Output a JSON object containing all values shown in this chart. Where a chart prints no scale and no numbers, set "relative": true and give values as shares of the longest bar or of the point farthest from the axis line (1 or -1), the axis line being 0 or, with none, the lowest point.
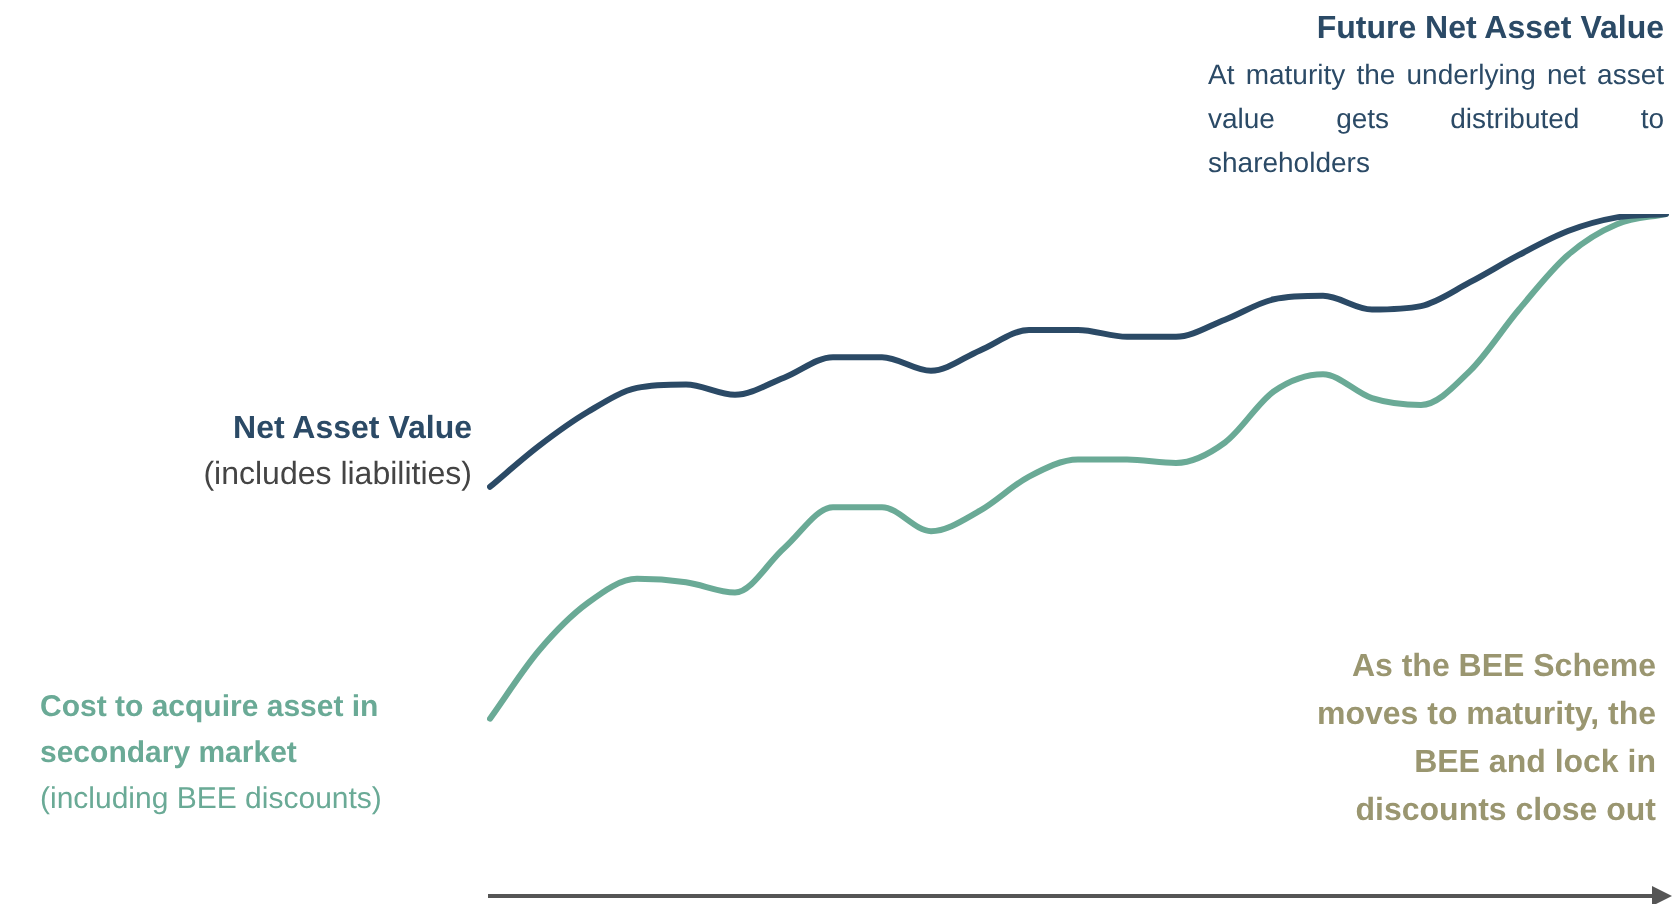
{
  "chart_data": {
    "type": "line",
    "relative": true,
    "legend": false,
    "grid": false,
    "marker": "none",
    "line_style": "solid",
    "categories": [
      null,
      null,
      null,
      null,
      null,
      null,
      null,
      null,
      null,
      null,
      null,
      null,
      null,
      null,
      null,
      null,
      null,
      null,
      null,
      null,
      null,
      null,
      null,
      null,
      null
    ],
    "series": [
      {
        "name": "Net Asset Value",
        "color": "#2b4a66",
        "values": [
          0.6,
          0.66,
          0.71,
          0.745,
          0.75,
          0.735,
          0.76,
          0.79,
          0.79,
          0.77,
          0.8,
          0.83,
          0.83,
          0.82,
          0.82,
          0.845,
          0.875,
          0.88,
          0.86,
          0.865,
          0.9,
          0.94,
          0.975,
          0.995,
          1
        ]
      },
      {
        "name": "Cost to acquire asset in secondary market",
        "color": "#6aaa96",
        "values": [
          0.26,
          0.36,
          0.43,
          0.465,
          0.46,
          0.445,
          0.51,
          0.57,
          0.57,
          0.535,
          0.565,
          0.615,
          0.64,
          0.64,
          0.635,
          0.665,
          0.74,
          0.765,
          0.73,
          0.72,
          0.77,
          0.86,
          0.94,
          0.985,
          1
        ]
      }
    ],
    "annotations": [
      "(includes liabilities)",
      "(including BEE discounts)",
      "Future Net Asset Value",
      "At maturity the underlying net asset value gets distributed to shareholders",
      "As the BEE Scheme moves to maturity, the BEE and lock in discounts close out"
    ]
  }
}
